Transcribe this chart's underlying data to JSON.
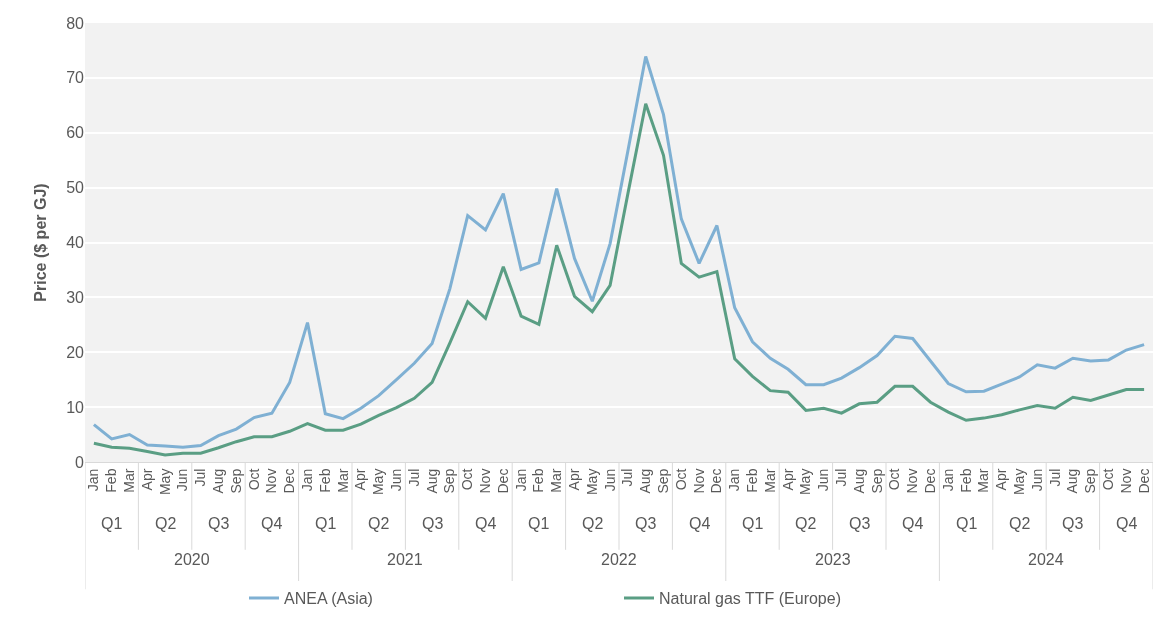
{
  "chart_data": {
    "type": "line",
    "ylabel": "Price ($ per GJ)",
    "categories": [
      "Jan",
      "Feb",
      "Mar",
      "Apr",
      "May",
      "Jun",
      "Jul",
      "Aug",
      "Sep",
      "Oct",
      "Nov",
      "Dec",
      "Jan",
      "Feb",
      "Mar",
      "Apr",
      "May",
      "Jun",
      "Jul",
      "Aug",
      "Sep",
      "Oct",
      "Nov",
      "Dec",
      "Jan",
      "Feb",
      "Mar",
      "Apr",
      "May",
      "Jun",
      "Jul",
      "Aug",
      "Sep",
      "Oct",
      "Nov",
      "Dec",
      "Jan",
      "Feb",
      "Mar",
      "Apr",
      "May",
      "Jun",
      "Jul",
      "Aug",
      "Sep",
      "Oct",
      "Nov",
      "Dec",
      "Jan",
      "Feb",
      "Mar",
      "Apr",
      "May",
      "Jun",
      "Jul",
      "Aug",
      "Sep",
      "Oct",
      "Nov",
      "Dec"
    ],
    "series": [
      {
        "name": "ANEA (Asia)",
        "color": "#7fb0d3",
        "values": [
          6.8,
          4.2,
          5.0,
          3.1,
          2.9,
          2.7,
          3.0,
          4.8,
          6.0,
          8.1,
          8.9,
          14.5,
          25.4,
          8.8,
          7.9,
          9.8,
          12.1,
          15.0,
          18.0,
          21.6,
          31.6,
          44.9,
          42.3,
          48.9,
          35.1,
          36.3,
          49.8,
          37.1,
          29.3,
          39.8,
          56.7,
          73.9,
          63.3,
          44.3,
          36.2,
          43.1,
          28.1,
          21.9,
          18.9,
          16.9,
          14.1,
          14.1,
          15.3,
          17.2,
          19.4,
          22.9,
          22.5,
          18.4,
          14.3,
          12.8,
          12.9,
          14.2,
          15.5,
          17.7,
          17.1,
          18.9,
          18.4,
          18.6,
          20.4,
          21.4
        ]
      },
      {
        "name": "Natural gas TTF (Europe)",
        "color": "#5a9e84",
        "values": [
          3.4,
          2.7,
          2.5,
          1.9,
          1.3,
          1.6,
          1.6,
          2.6,
          3.7,
          4.6,
          4.6,
          5.6,
          7.0,
          5.8,
          5.8,
          6.9,
          8.5,
          9.9,
          11.6,
          14.5,
          21.7,
          29.2,
          26.2,
          35.6,
          26.6,
          25.1,
          39.5,
          30.2,
          27.4,
          32.2,
          48.9,
          65.3,
          55.9,
          36.2,
          33.7,
          34.7,
          18.8,
          15.6,
          13.0,
          12.7,
          9.4,
          9.8,
          8.9,
          10.6,
          10.9,
          13.8,
          13.8,
          10.9,
          9.1,
          7.6,
          8.0,
          8.6,
          9.5,
          10.3,
          9.8,
          11.8,
          11.2,
          12.2,
          13.2,
          13.2
        ]
      }
    ],
    "annotations": [
      "Q1",
      "Q2",
      "Q3",
      "Q4",
      "Q1",
      "Q2",
      "Q3",
      "Q4",
      "Q1",
      "Q2",
      "Q3",
      "Q4",
      "Q1",
      "Q2",
      "Q3",
      "Q4",
      "Q1",
      "Q2",
      "Q3",
      "Q4",
      "2020",
      "2021",
      "2022",
      "2023",
      "2024"
    ],
    "ylim": [
      0,
      80
    ],
    "yticks": [
      0,
      10,
      20,
      30,
      40,
      50,
      60,
      70,
      80
    ],
    "grid": "y",
    "legend": "bottom",
    "marker": "none",
    "line_style": "solid"
  }
}
